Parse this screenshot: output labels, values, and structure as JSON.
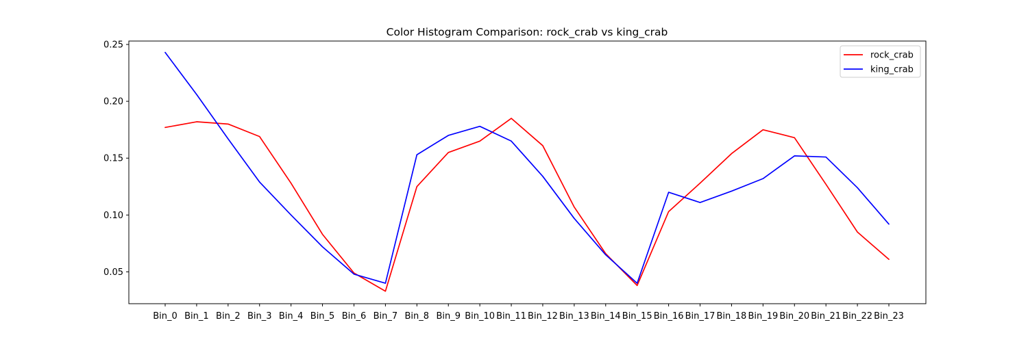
{
  "chart_data": {
    "type": "line",
    "title": "Color Histogram Comparison: rock_crab vs king_crab",
    "xlabel": "",
    "ylabel": "",
    "categories": [
      "Bin_0",
      "Bin_1",
      "Bin_2",
      "Bin_3",
      "Bin_4",
      "Bin_5",
      "Bin_6",
      "Bin_7",
      "Bin_8",
      "Bin_9",
      "Bin_10",
      "Bin_11",
      "Bin_12",
      "Bin_13",
      "Bin_14",
      "Bin_15",
      "Bin_16",
      "Bin_17",
      "Bin_18",
      "Bin_19",
      "Bin_20",
      "Bin_21",
      "Bin_22",
      "Bin_23"
    ],
    "ylim": [
      0.022,
      0.253
    ],
    "yticks": [
      0.05,
      0.1,
      0.15,
      0.2,
      0.25
    ],
    "ytick_labels": [
      "0.05",
      "0.10",
      "0.15",
      "0.20",
      "0.25"
    ],
    "grid": false,
    "legend_position": "top-right",
    "series": [
      {
        "name": "rock_crab",
        "color": "#ff0000",
        "values": [
          0.177,
          0.182,
          0.18,
          0.169,
          0.128,
          0.083,
          0.049,
          0.033,
          0.125,
          0.155,
          0.165,
          0.185,
          0.161,
          0.107,
          0.066,
          0.038,
          0.103,
          0.128,
          0.154,
          0.175,
          0.168,
          0.127,
          0.085,
          0.061
        ]
      },
      {
        "name": "king_crab",
        "color": "#0000ff",
        "values": [
          0.243,
          0.206,
          0.167,
          0.129,
          0.1,
          0.072,
          0.048,
          0.04,
          0.153,
          0.17,
          0.178,
          0.165,
          0.134,
          0.097,
          0.065,
          0.04,
          0.12,
          0.111,
          0.121,
          0.132,
          0.152,
          0.151,
          0.124,
          0.092
        ]
      }
    ]
  }
}
